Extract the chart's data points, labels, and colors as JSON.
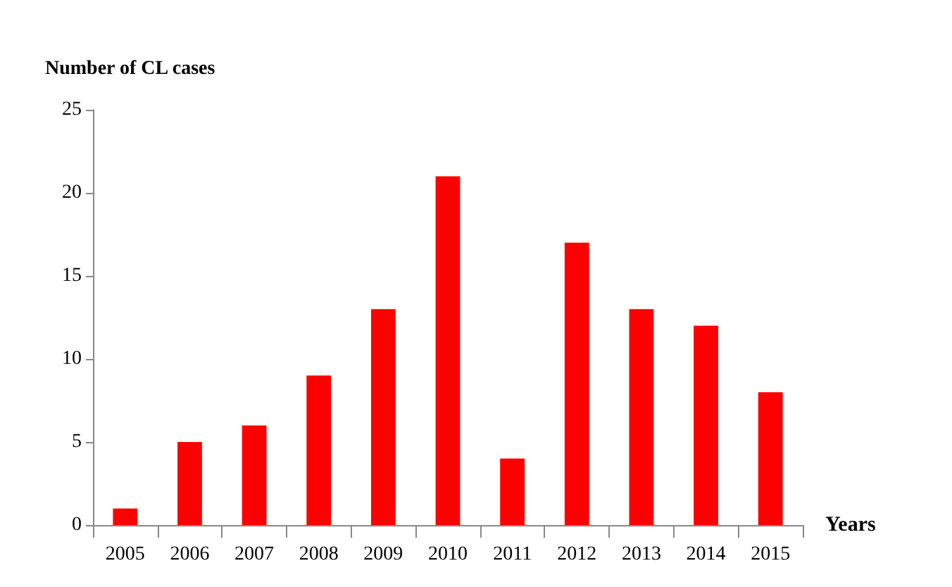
{
  "chart_data": {
    "type": "bar",
    "xlabel": "Years",
    "ylabel": "Number of CL cases",
    "categories": [
      "2005",
      "2006",
      "2007",
      "2008",
      "2009",
      "2010",
      "2011",
      "2012",
      "2013",
      "2014",
      "2015"
    ],
    "values": [
      1,
      5,
      6,
      9,
      13,
      21,
      4,
      17,
      13,
      12,
      8
    ],
    "color": "#ff0000",
    "ylim": [
      0,
      25
    ],
    "yticks": [
      0,
      5,
      10,
      15,
      20,
      25
    ],
    "grid": false
  }
}
